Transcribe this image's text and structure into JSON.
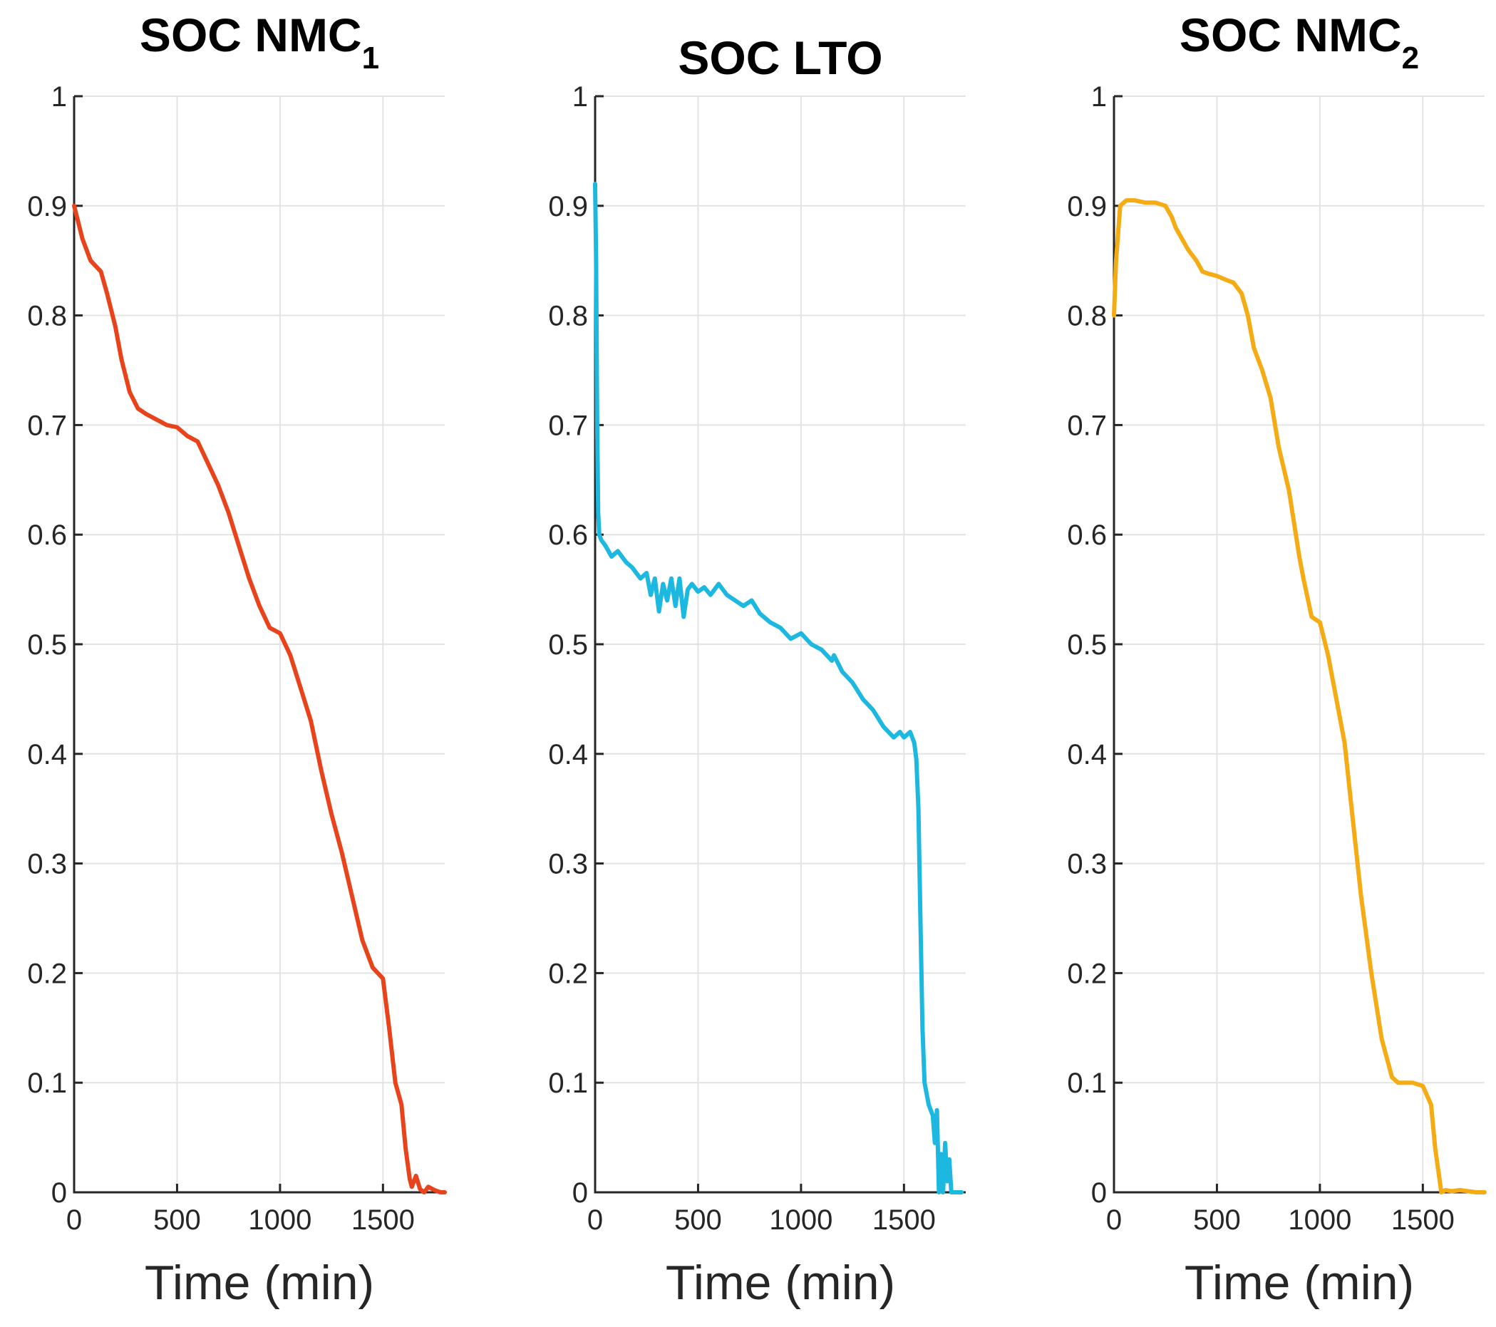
{
  "chart_data": [
    {
      "type": "line",
      "title": "SOC NMC",
      "title_subscript": "1",
      "xlabel": "Time (min)",
      "ylabel": "",
      "xlim": [
        0,
        1800
      ],
      "ylim": [
        0,
        1
      ],
      "xticks": [
        0,
        500,
        1000,
        1500
      ],
      "xtick_labels": [
        "0",
        "500",
        "1000",
        "1500"
      ],
      "yticks": [
        0,
        0.1,
        0.2,
        0.3,
        0.4,
        0.5,
        0.6,
        0.7,
        0.8,
        0.9,
        1
      ],
      "ytick_labels": [
        "0",
        "0.1",
        "0.2",
        "0.3",
        "0.4",
        "0.5",
        "0.6",
        "0.7",
        "0.8",
        "0.9",
        "1"
      ],
      "grid": true,
      "series": [
        {
          "name": "SOC NMC1",
          "color": "#e8431a",
          "x": [
            0,
            40,
            80,
            130,
            160,
            200,
            230,
            270,
            310,
            350,
            400,
            450,
            500,
            550,
            600,
            650,
            700,
            750,
            800,
            850,
            900,
            950,
            1000,
            1050,
            1100,
            1150,
            1200,
            1250,
            1300,
            1350,
            1400,
            1450,
            1500,
            1530,
            1560,
            1590,
            1610,
            1630,
            1640,
            1660,
            1680,
            1700,
            1720,
            1750,
            1780,
            1800
          ],
          "y": [
            0.9,
            0.87,
            0.85,
            0.84,
            0.82,
            0.79,
            0.76,
            0.73,
            0.715,
            0.71,
            0.705,
            0.7,
            0.698,
            0.69,
            0.685,
            0.665,
            0.645,
            0.62,
            0.59,
            0.56,
            0.535,
            0.515,
            0.51,
            0.49,
            0.46,
            0.43,
            0.385,
            0.345,
            0.31,
            0.27,
            0.23,
            0.205,
            0.195,
            0.15,
            0.1,
            0.08,
            0.04,
            0.012,
            0.005,
            0.015,
            0.003,
            0.0,
            0.005,
            0.002,
            0.0,
            0.0
          ]
        }
      ]
    },
    {
      "type": "line",
      "title": "SOC LTO",
      "xlabel": "Time (min)",
      "ylabel": "",
      "xlim": [
        0,
        1800
      ],
      "ylim": [
        0,
        1
      ],
      "xticks": [
        0,
        500,
        1000,
        1500
      ],
      "xtick_labels": [
        "0",
        "500",
        "1000",
        "1500"
      ],
      "yticks": [
        0,
        0.1,
        0.2,
        0.3,
        0.4,
        0.5,
        0.6,
        0.7,
        0.8,
        0.9,
        1
      ],
      "ytick_labels": [
        "0",
        "0.1",
        "0.2",
        "0.3",
        "0.4",
        "0.5",
        "0.6",
        "0.7",
        "0.8",
        "0.9",
        "1"
      ],
      "grid": true,
      "series": [
        {
          "name": "SOC LTO",
          "color": "#1cb8e0",
          "x": [
            0,
            5,
            10,
            15,
            20,
            30,
            50,
            80,
            110,
            150,
            180,
            220,
            250,
            270,
            290,
            310,
            330,
            350,
            370,
            390,
            410,
            430,
            450,
            470,
            500,
            530,
            560,
            600,
            640,
            680,
            720,
            760,
            800,
            850,
            900,
            950,
            1000,
            1050,
            1100,
            1150,
            1160,
            1200,
            1250,
            1300,
            1350,
            1400,
            1450,
            1480,
            1500,
            1530,
            1550,
            1560,
            1570,
            1580,
            1590,
            1600,
            1620,
            1640,
            1650,
            1660,
            1670,
            1680,
            1690,
            1700,
            1710,
            1720,
            1730,
            1750,
            1780
          ],
          "y": [
            0.92,
            0.85,
            0.7,
            0.62,
            0.6,
            0.595,
            0.59,
            0.58,
            0.585,
            0.575,
            0.57,
            0.56,
            0.565,
            0.545,
            0.56,
            0.53,
            0.555,
            0.54,
            0.56,
            0.535,
            0.56,
            0.525,
            0.55,
            0.555,
            0.548,
            0.552,
            0.545,
            0.555,
            0.545,
            0.54,
            0.535,
            0.54,
            0.528,
            0.52,
            0.515,
            0.505,
            0.51,
            0.5,
            0.495,
            0.485,
            0.49,
            0.475,
            0.465,
            0.45,
            0.44,
            0.425,
            0.415,
            0.42,
            0.415,
            0.42,
            0.41,
            0.395,
            0.35,
            0.25,
            0.15,
            0.1,
            0.08,
            0.07,
            0.045,
            0.075,
            0.0,
            0.035,
            0.0,
            0.045,
            0.01,
            0.03,
            0.0,
            0.0,
            0.0
          ]
        }
      ]
    },
    {
      "type": "line",
      "title": "SOC NMC",
      "title_subscript": "2",
      "xlabel": "Time (min)",
      "ylabel": "",
      "xlim": [
        0,
        1800
      ],
      "ylim": [
        0,
        1
      ],
      "xticks": [
        0,
        500,
        1000,
        1500
      ],
      "xtick_labels": [
        "0",
        "500",
        "1000",
        "1500"
      ],
      "yticks": [
        0,
        0.1,
        0.2,
        0.3,
        0.4,
        0.5,
        0.6,
        0.7,
        0.8,
        0.9,
        1
      ],
      "ytick_labels": [
        "0",
        "0.1",
        "0.2",
        "0.3",
        "0.4",
        "0.5",
        "0.6",
        "0.7",
        "0.8",
        "0.9",
        "1"
      ],
      "grid": true,
      "series": [
        {
          "name": "SOC NMC2",
          "color": "#f5ab13",
          "x": [
            0,
            10,
            30,
            60,
            100,
            150,
            200,
            250,
            280,
            300,
            330,
            360,
            400,
            430,
            460,
            500,
            550,
            580,
            620,
            650,
            680,
            720,
            760,
            800,
            850,
            900,
            920,
            960,
            1000,
            1040,
            1080,
            1120,
            1160,
            1200,
            1250,
            1300,
            1350,
            1380,
            1400,
            1450,
            1500,
            1540,
            1560,
            1590,
            1610,
            1640,
            1680,
            1720,
            1760,
            1800
          ],
          "y": [
            0.8,
            0.85,
            0.9,
            0.905,
            0.905,
            0.903,
            0.903,
            0.9,
            0.89,
            0.88,
            0.87,
            0.86,
            0.85,
            0.84,
            0.838,
            0.836,
            0.832,
            0.83,
            0.82,
            0.8,
            0.77,
            0.75,
            0.725,
            0.68,
            0.64,
            0.58,
            0.56,
            0.525,
            0.52,
            0.49,
            0.45,
            0.41,
            0.34,
            0.27,
            0.2,
            0.14,
            0.105,
            0.1,
            0.1,
            0.1,
            0.097,
            0.08,
            0.04,
            0.0,
            0.002,
            0.001,
            0.002,
            0.001,
            0.0,
            0.0
          ]
        }
      ]
    }
  ]
}
